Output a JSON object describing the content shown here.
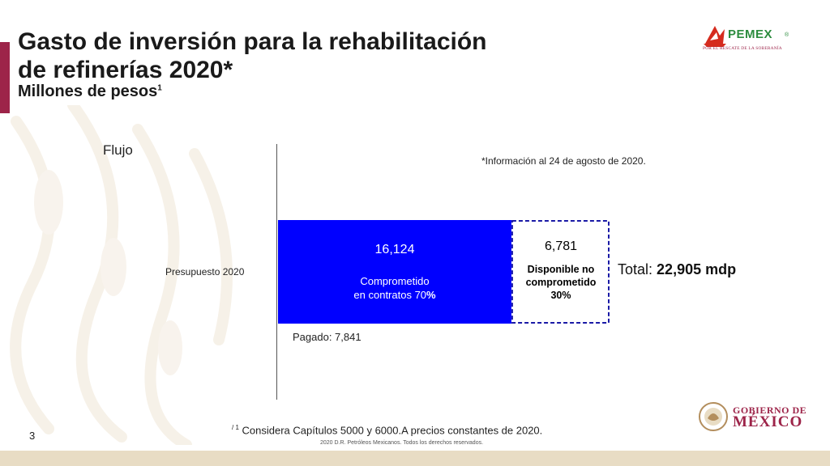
{
  "header": {
    "title_line1": "Gasto de inversión para la rehabilitación",
    "title_line2": "de refinerías 2020*",
    "subtitle": "Millones de pesos",
    "subtitle_sup": "1"
  },
  "logo": {
    "name": "PEMEX",
    "registered": "®",
    "tagline": "POR EL RESCATE DE LA SOBERANÍA"
  },
  "chart_data": {
    "type": "bar",
    "orientation": "horizontal",
    "stacked": true,
    "axis_label": "Flujo",
    "note": "*Información al 24 de agosto de 2020.",
    "categories": [
      "Presupuesto 2020"
    ],
    "series": [
      {
        "name": "Comprometido en contratos 70%",
        "value_label": "16,124",
        "values": [
          16124
        ],
        "color": "#0000ff"
      },
      {
        "name": "Disponible no comprometido 30%",
        "value_label": "6,781",
        "values": [
          6781
        ],
        "color": "#ffffff",
        "border": "dashed",
        "border_color": "#1a1aa6"
      }
    ],
    "seg1_desc_line1": "Comprometido",
    "seg1_desc_line2_pre": "en contratos 70",
    "seg1_desc_line2_pct": "%",
    "seg2_desc_line1": "Disponible no",
    "seg2_desc_line2": "comprometido",
    "seg2_desc_line3": "30%",
    "total_prefix": "Total:",
    "total_value": "22,905 mdp",
    "total": 22905,
    "paid_label": "Pagado: 7,841",
    "paid": 7841
  },
  "footer": {
    "footnote_sup": "/ 1",
    "footnote": "Considera Capítulos 5000 y 6000.A precios constantes de 2020.",
    "copyright": "2020 D.R. Petróleos Mexicanos. Todos los derechos reservados.",
    "page_number": "3",
    "gov_line1": "GOBIERNO DE",
    "gov_line2": "MÉXICO"
  }
}
